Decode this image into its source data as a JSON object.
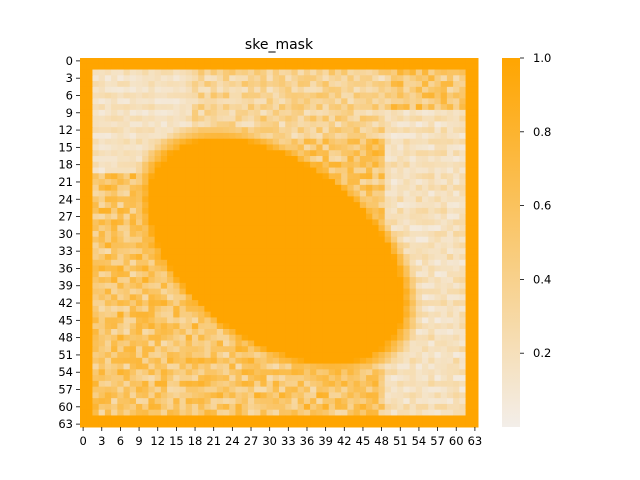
{
  "chart_data": {
    "type": "heatmap",
    "title": "ske_mask",
    "rows": 64,
    "cols": 64,
    "x_tick_labels": [
      "0",
      "3",
      "6",
      "9",
      "12",
      "15",
      "18",
      "21",
      "24",
      "27",
      "30",
      "33",
      "36",
      "39",
      "42",
      "45",
      "48",
      "51",
      "54",
      "57",
      "60",
      "63"
    ],
    "y_tick_labels": [
      "0",
      "3",
      "6",
      "9",
      "12",
      "15",
      "18",
      "21",
      "24",
      "27",
      "30",
      "33",
      "36",
      "39",
      "42",
      "45",
      "48",
      "51",
      "54",
      "57",
      "60",
      "63"
    ],
    "colorbar": {
      "ticks": [
        "0.2",
        "0.4",
        "0.6",
        "0.8",
        "1.0"
      ],
      "range": [
        0.0,
        1.0
      ]
    },
    "colormap": {
      "low": "#f3eee9",
      "high": "#ffa500"
    },
    "description": "Values ≈1.0 on the outer border frame and in a large rotated blob spanning roughly columns 12–50 and rows 9–58; low values (~0.05–0.2) in the top-left and right-side regions; intermediate values elsewhere with a striped texture."
  }
}
